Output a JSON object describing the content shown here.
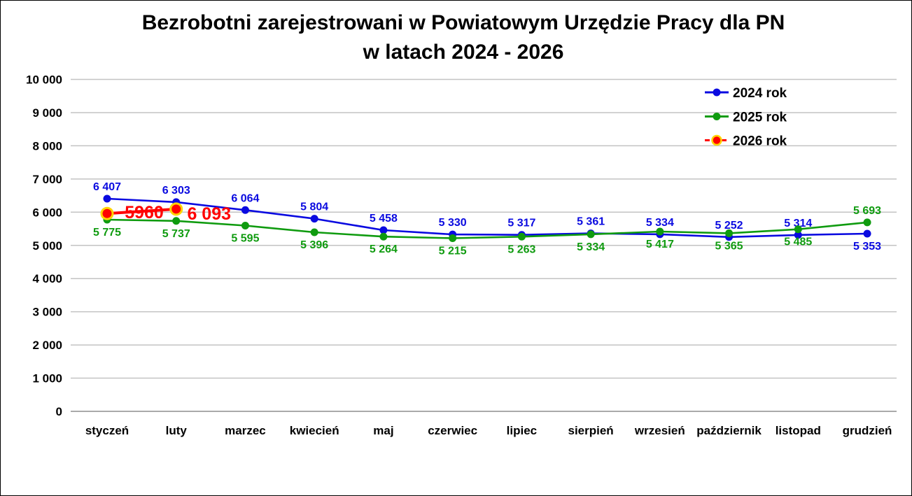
{
  "window": {
    "background": "#ffffff",
    "border_color": "#000000"
  },
  "title": {
    "line1": "Bezrobotni zarejestrowani w Powiatowym Urzędzie Pracy dla PN",
    "line2": "w latach 2024 - 2026"
  },
  "chart_data": {
    "type": "line",
    "title": "Bezrobotni zarejestrowani w Powiatowym Urzędzie Pracy dla PN",
    "subtitle": "w latach 2024 - 2026",
    "categories": [
      "styczeń",
      "luty",
      "marzec",
      "kwiecień",
      "maj",
      "czerwiec",
      "lipiec",
      "sierpień",
      "wrzesień",
      "październik",
      "listopad",
      "grudzień"
    ],
    "ylim": [
      0,
      10000
    ],
    "ytick_step": 1000,
    "ytick_labels": [
      "0",
      "1 000",
      "2 000",
      "3 000",
      "4 000",
      "5 000",
      "6 000",
      "7 000",
      "8 000",
      "9 000",
      "10 000"
    ],
    "grid": true,
    "legend_position": "top-right",
    "colors": {
      "grid": "#c3c3c3",
      "axis_zero_line": "#9e9e9e",
      "text": "#000000",
      "marker_ring": "#ffd400"
    },
    "series": [
      {
        "name": "2024 rok",
        "color": "#0a0ae0",
        "marker": "small",
        "dash": false,
        "values": [
          6407,
          6303,
          6064,
          5804,
          5458,
          5330,
          5317,
          5361,
          5334,
          5252,
          5314,
          5353
        ],
        "labels": [
          {
            "text": "6 407",
            "placement": "above"
          },
          {
            "text": "6 303",
            "placement": "above"
          },
          {
            "text": "6 064",
            "placement": "above"
          },
          {
            "text": "5 804",
            "placement": "above"
          },
          {
            "text": "5 458",
            "placement": "above"
          },
          {
            "text": "5 330",
            "placement": "above"
          },
          {
            "text": "5 317",
            "placement": "above"
          },
          {
            "text": "5 361",
            "placement": "above"
          },
          {
            "text": "5 334",
            "placement": "above"
          },
          {
            "text": "5 252",
            "placement": "above"
          },
          {
            "text": "5 314",
            "placement": "above"
          },
          {
            "text": "5 353",
            "placement": "below"
          }
        ]
      },
      {
        "name": "2025 rok",
        "color": "#0f9b0f",
        "marker": "small",
        "dash": false,
        "values": [
          5775,
          5737,
          5595,
          5396,
          5264,
          5215,
          5263,
          5334,
          5417,
          5365,
          5485,
          5693
        ],
        "labels": [
          {
            "text": "5 775",
            "placement": "below"
          },
          {
            "text": "5 737",
            "placement": "below"
          },
          {
            "text": "5 595",
            "placement": "below"
          },
          {
            "text": "5 396",
            "placement": "below"
          },
          {
            "text": "5 264",
            "placement": "below"
          },
          {
            "text": "5 215",
            "placement": "below"
          },
          {
            "text": "5 263",
            "placement": "below"
          },
          {
            "text": "5 334",
            "placement": "below"
          },
          {
            "text": "5 417",
            "placement": "below"
          },
          {
            "text": "5 365",
            "placement": "below"
          },
          {
            "text": "5 485",
            "placement": "below"
          },
          {
            "text": "5 693",
            "placement": "above"
          }
        ]
      },
      {
        "name": "2026 rok",
        "color": "#ff0000",
        "marker": "large",
        "marker_ring": "#ffd400",
        "dash": true,
        "values": [
          5960,
          6093,
          null,
          null,
          null,
          null,
          null,
          null,
          null,
          null,
          null,
          null
        ],
        "labels": [
          {
            "text": "5960",
            "placement": "right-center"
          },
          {
            "text": "6 093",
            "placement": "right-below"
          }
        ]
      }
    ]
  }
}
